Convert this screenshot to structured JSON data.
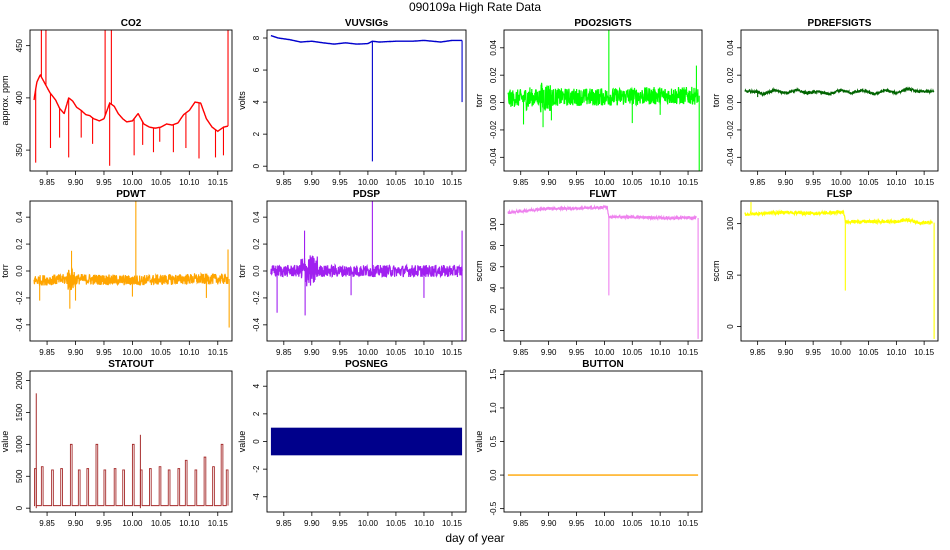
{
  "figure": {
    "title": "090109a   High Rate Data",
    "xlabel": "day of year"
  },
  "chart_data": [
    {
      "name": "CO2",
      "type": "line",
      "title": "CO2",
      "ylabel": "approx. ppm",
      "color": "#ff0000",
      "xlim": [
        9.82,
        10.175
      ],
      "ylim": [
        330,
        465
      ],
      "xticks": [
        "9.85",
        "9.90",
        "9.95",
        "10.00",
        "10.05",
        "10.10",
        "10.15"
      ],
      "yticks": [
        "350",
        "400",
        "450"
      ],
      "baseline": [
        [
          9.827,
          398
        ],
        [
          9.832,
          415
        ],
        [
          9.838,
          422
        ],
        [
          9.845,
          415
        ],
        [
          9.855,
          405
        ],
        [
          9.865,
          398
        ],
        [
          9.872,
          390
        ],
        [
          9.88,
          385
        ],
        [
          9.888,
          400
        ],
        [
          9.895,
          397
        ],
        [
          9.902,
          391
        ],
        [
          9.91,
          388
        ],
        [
          9.918,
          384
        ],
        [
          9.925,
          383
        ],
        [
          9.932,
          380
        ],
        [
          9.942,
          378
        ],
        [
          9.95,
          380
        ],
        [
          9.96,
          395
        ],
        [
          9.968,
          392
        ],
        [
          9.975,
          385
        ],
        [
          9.983,
          380
        ],
        [
          9.99,
          377
        ],
        [
          10.0,
          378
        ],
        [
          10.01,
          385
        ],
        [
          10.02,
          375
        ],
        [
          10.03,
          372
        ],
        [
          10.04,
          371
        ],
        [
          10.05,
          372
        ],
        [
          10.06,
          375
        ],
        [
          10.07,
          374
        ],
        [
          10.08,
          376
        ],
        [
          10.09,
          384
        ],
        [
          10.1,
          388
        ],
        [
          10.11,
          396
        ],
        [
          10.12,
          395
        ],
        [
          10.13,
          380
        ],
        [
          10.14,
          372
        ],
        [
          10.15,
          368
        ],
        [
          10.16,
          372
        ],
        [
          10.168,
          373
        ]
      ],
      "dips": [
        [
          9.83,
          338
        ],
        [
          9.856,
          352
        ],
        [
          9.872,
          362
        ],
        [
          9.888,
          343
        ],
        [
          9.91,
          362
        ],
        [
          9.93,
          356
        ],
        [
          9.96,
          335
        ],
        [
          10.003,
          345
        ],
        [
          10.018,
          355
        ],
        [
          10.037,
          348
        ],
        [
          10.048,
          358
        ],
        [
          10.072,
          348
        ],
        [
          10.094,
          352
        ],
        [
          10.117,
          342
        ],
        [
          10.146,
          343
        ],
        [
          10.16,
          345
        ]
      ],
      "spikes": [
        [
          9.84,
          465
        ],
        [
          9.848,
          465
        ],
        [
          9.952,
          465
        ],
        [
          9.963,
          465
        ],
        [
          10.168,
          465
        ]
      ]
    },
    {
      "name": "VUVSIGs",
      "type": "line",
      "title": "VUVSIGs",
      "ylabel": "volts",
      "color": "#0000cd",
      "xlim": [
        9.82,
        10.175
      ],
      "ylim": [
        -0.3,
        8.5
      ],
      "xticks": [
        "9.85",
        "9.90",
        "9.95",
        "10.00",
        "10.05",
        "10.10",
        "10.15"
      ],
      "yticks": [
        "0",
        "2",
        "4",
        "6",
        "8"
      ],
      "baseline": [
        [
          9.827,
          8.15
        ],
        [
          9.84,
          8.0
        ],
        [
          9.86,
          7.9
        ],
        [
          9.88,
          7.75
        ],
        [
          9.9,
          7.8
        ],
        [
          9.92,
          7.7
        ],
        [
          9.94,
          7.62
        ],
        [
          9.96,
          7.7
        ],
        [
          9.98,
          7.62
        ],
        [
          10.0,
          7.65
        ],
        [
          10.008,
          7.8
        ],
        [
          10.02,
          7.75
        ],
        [
          10.05,
          7.8
        ],
        [
          10.08,
          7.8
        ],
        [
          10.1,
          7.85
        ],
        [
          10.13,
          7.75
        ],
        [
          10.15,
          7.85
        ],
        [
          10.168,
          7.85
        ]
      ],
      "dips": [
        [
          10.008,
          0.3
        ],
        [
          10.168,
          4.0
        ]
      ],
      "spikes": []
    },
    {
      "name": "PDO2SIGTS",
      "type": "line",
      "title": "PDO2SIGTS",
      "ylabel": "torr",
      "color": "#00ff00",
      "xlim": [
        9.82,
        10.175
      ],
      "ylim": [
        -0.05,
        0.053
      ],
      "xticks": [
        "9.85",
        "9.90",
        "9.95",
        "10.00",
        "10.05",
        "10.10",
        "10.15"
      ],
      "yticks": [
        "-0.04",
        "-0.02",
        "0.00",
        "0.02",
        "0.04"
      ],
      "baseline": [
        [
          9.827,
          0.003
        ],
        [
          9.9,
          0.004
        ],
        [
          10.0,
          0.004
        ],
        [
          10.1,
          0.005
        ],
        [
          10.168,
          0.005
        ]
      ],
      "noise": 0.0065,
      "bursts": [
        [
          9.885,
          9.905,
          0.011
        ],
        [
          9.858,
          9.868,
          0.009
        ]
      ],
      "dips": [
        [
          9.855,
          -0.016
        ],
        [
          9.89,
          -0.018
        ],
        [
          9.905,
          -0.013
        ],
        [
          10.05,
          -0.015
        ],
        [
          10.1,
          -0.009
        ],
        [
          10.17,
          -0.05
        ]
      ],
      "spikes": [
        [
          10.008,
          0.053
        ],
        [
          10.165,
          0.027
        ]
      ]
    },
    {
      "name": "PDREFSIGTS",
      "type": "line",
      "title": "PDREFSIGTS",
      "ylabel": "torr",
      "color": "#006400",
      "xlim": [
        9.82,
        10.175
      ],
      "ylim": [
        -0.05,
        0.053
      ],
      "xticks": [
        "9.85",
        "9.90",
        "9.95",
        "10.00",
        "10.05",
        "10.10",
        "10.15"
      ],
      "yticks": [
        "-0.04",
        "-0.02",
        "0.00",
        "0.02",
        "0.04"
      ],
      "baseline": [
        [
          9.827,
          0.008
        ],
        [
          9.85,
          0.008
        ],
        [
          9.86,
          0.006
        ],
        [
          9.88,
          0.009
        ],
        [
          9.9,
          0.007
        ],
        [
          9.92,
          0.009
        ],
        [
          9.94,
          0.007
        ],
        [
          9.96,
          0.008
        ],
        [
          9.98,
          0.006
        ],
        [
          10.0,
          0.009
        ],
        [
          10.02,
          0.007
        ],
        [
          10.04,
          0.009
        ],
        [
          10.06,
          0.006
        ],
        [
          10.08,
          0.009
        ],
        [
          10.1,
          0.007
        ],
        [
          10.12,
          0.01
        ],
        [
          10.14,
          0.008
        ],
        [
          10.168,
          0.008
        ]
      ],
      "noise": 0.001,
      "dips": [
        [
          9.85,
          0.004
        ]
      ],
      "spikes": []
    },
    {
      "name": "PDWT",
      "type": "line",
      "title": "PDWT",
      "ylabel": "torr",
      "color": "#ffa500",
      "xlim": [
        9.82,
        10.175
      ],
      "ylim": [
        -0.52,
        0.52
      ],
      "xticks": [
        "9.85",
        "9.90",
        "9.95",
        "10.00",
        "10.05",
        "10.10",
        "10.15"
      ],
      "yticks": [
        "-0.4",
        "-0.2",
        "0.0",
        "0.2",
        "0.4"
      ],
      "baseline": [
        [
          9.827,
          -0.07
        ],
        [
          9.9,
          -0.06
        ],
        [
          10.0,
          -0.07
        ],
        [
          10.1,
          -0.06
        ],
        [
          10.168,
          -0.06
        ]
      ],
      "noise": 0.04,
      "bursts": [
        [
          9.885,
          9.9,
          0.09
        ]
      ],
      "dips": [
        [
          9.837,
          -0.22
        ],
        [
          9.89,
          -0.28
        ],
        [
          9.9,
          -0.22
        ],
        [
          10.0,
          -0.19
        ],
        [
          10.13,
          -0.2
        ],
        [
          10.17,
          -0.42
        ]
      ],
      "spikes": [
        [
          9.893,
          0.15
        ],
        [
          10.006,
          0.52
        ],
        [
          10.168,
          0.16
        ]
      ]
    },
    {
      "name": "PDSP",
      "type": "line",
      "title": "PDSP",
      "ylabel": "torr",
      "color": "#a020f0",
      "xlim": [
        9.82,
        10.175
      ],
      "ylim": [
        -0.52,
        0.52
      ],
      "xticks": [
        "9.85",
        "9.90",
        "9.95",
        "10.00",
        "10.05",
        "10.10",
        "10.15"
      ],
      "yticks": [
        "-0.4",
        "-0.2",
        "0.0",
        "0.2",
        "0.4"
      ],
      "baseline": [
        [
          9.827,
          0.0
        ],
        [
          9.9,
          0.0
        ],
        [
          10.0,
          0.0
        ],
        [
          10.1,
          0.0
        ],
        [
          10.168,
          0.0
        ]
      ],
      "noise": 0.045,
      "bursts": [
        [
          9.88,
          9.91,
          0.12
        ]
      ],
      "dips": [
        [
          9.838,
          -0.31
        ],
        [
          9.888,
          -0.33
        ],
        [
          9.97,
          -0.18
        ],
        [
          10.1,
          -0.2
        ],
        [
          10.168,
          -0.52
        ]
      ],
      "spikes": [
        [
          9.887,
          0.3
        ],
        [
          10.008,
          0.52
        ],
        [
          10.168,
          0.3
        ]
      ]
    },
    {
      "name": "FLWT",
      "type": "line",
      "title": "FLWT",
      "ylabel": "sccm",
      "color": "#ee82ee",
      "xlim": [
        9.82,
        10.175
      ],
      "ylim": [
        -10,
        122
      ],
      "xticks": [
        "9.85",
        "9.90",
        "9.95",
        "10.00",
        "10.05",
        "10.10",
        "10.15"
      ],
      "yticks": [
        "0",
        "20",
        "40",
        "60",
        "80",
        "100"
      ],
      "baseline": [
        [
          9.827,
          111
        ],
        [
          9.86,
          113
        ],
        [
          9.9,
          115
        ],
        [
          9.95,
          115
        ],
        [
          10.0,
          116
        ],
        [
          10.005,
          116
        ],
        [
          10.008,
          107
        ],
        [
          10.05,
          107
        ],
        [
          10.1,
          106
        ],
        [
          10.14,
          106
        ],
        [
          10.165,
          106
        ]
      ],
      "noise": 1.4,
      "dips": [
        [
          10.008,
          33
        ],
        [
          10.168,
          -8
        ]
      ],
      "spikes": []
    },
    {
      "name": "FLSP",
      "type": "line",
      "title": "FLSP",
      "ylabel": "sccm",
      "color": "#ffff00",
      "xlim": [
        9.82,
        10.175
      ],
      "ylim": [
        -14,
        122
      ],
      "xticks": [
        "9.85",
        "9.90",
        "9.95",
        "10.00",
        "10.05",
        "10.10",
        "10.15"
      ],
      "yticks": [
        "0",
        "50",
        "100"
      ],
      "baseline": [
        [
          9.827,
          109
        ],
        [
          9.86,
          110
        ],
        [
          9.9,
          111
        ],
        [
          9.95,
          110
        ],
        [
          10.005,
          111
        ],
        [
          10.008,
          102
        ],
        [
          10.05,
          102
        ],
        [
          10.1,
          102
        ],
        [
          10.12,
          104
        ],
        [
          10.14,
          101
        ],
        [
          10.165,
          101
        ]
      ],
      "noise": 1.6,
      "dips": [
        [
          10.008,
          35
        ],
        [
          10.168,
          -12
        ]
      ],
      "spikes": [
        [
          9.838,
          121
        ]
      ]
    },
    {
      "name": "STATOUT",
      "type": "line",
      "title": "STATOUT",
      "ylabel": "value",
      "color": "#a52a2a",
      "xlim": [
        9.82,
        10.175
      ],
      "ylim": [
        -60,
        2150
      ],
      "xticks": [
        "9.85",
        "9.90",
        "9.95",
        "10.00",
        "10.05",
        "10.10",
        "10.15"
      ],
      "yticks": [
        "0",
        "500",
        "1000",
        "1500",
        "2000"
      ],
      "pulse_times": [
        9.828,
        9.84,
        9.858,
        9.874,
        9.891,
        9.905,
        9.92,
        9.936,
        9.95,
        9.968,
        9.983,
        10.0,
        10.014,
        10.03,
        10.047,
        10.063,
        10.08,
        10.093,
        10.11,
        10.126,
        10.141,
        10.156,
        10.165
      ],
      "pulse_heights": [
        620,
        650,
        600,
        620,
        1000,
        600,
        620,
        1000,
        600,
        620,
        600,
        1000,
        600,
        620,
        650,
        600,
        620,
        750,
        600,
        800,
        650,
        1000,
        600
      ],
      "big_spikes": [
        [
          9.831,
          1800
        ],
        [
          10.014,
          1150
        ]
      ]
    },
    {
      "name": "POSNEG",
      "type": "bar",
      "title": "POSNEG",
      "ylabel": "value",
      "color": "#00008b",
      "xlim": [
        9.82,
        10.175
      ],
      "ylim": [
        -5.1,
        5.1
      ],
      "xticks": [
        "9.85",
        "9.90",
        "9.95",
        "10.00",
        "10.05",
        "10.10",
        "10.15"
      ],
      "yticks": [
        "-4",
        "-2",
        "0",
        "2",
        "4"
      ],
      "band": {
        "x0": 9.827,
        "x1": 10.168,
        "y0": -1,
        "y1": 1
      }
    },
    {
      "name": "BUTTON",
      "type": "line",
      "title": "BUTTON",
      "ylabel": "value",
      "color": "#ffa500",
      "xlim": [
        9.82,
        10.175
      ],
      "ylim": [
        -0.55,
        1.55
      ],
      "xticks": [
        "9.85",
        "9.90",
        "9.95",
        "10.00",
        "10.05",
        "10.10",
        "10.15"
      ],
      "yticks": [
        "-0.5",
        "0.0",
        "0.5",
        "1.0",
        "1.5"
      ],
      "baseline": [
        [
          9.827,
          0.0
        ],
        [
          10.168,
          0.0
        ]
      ]
    }
  ]
}
